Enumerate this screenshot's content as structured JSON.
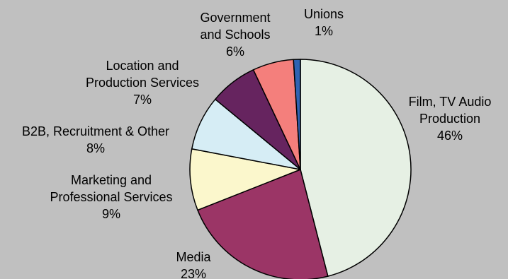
{
  "chart_data": {
    "type": "pie",
    "title": "",
    "slices": [
      {
        "label_lines": [
          "Film, TV Audio",
          "Production"
        ],
        "pct_text": "46%",
        "value": 46,
        "color": "#e6f0e4"
      },
      {
        "label_lines": [
          "Media"
        ],
        "pct_text": "23%",
        "value": 23,
        "color": "#9b3566"
      },
      {
        "label_lines": [
          "Marketing and",
          "Professional Services"
        ],
        "pct_text": "9%",
        "value": 9,
        "color": "#fbf7cc"
      },
      {
        "label_lines": [
          "B2B, Recruitment & Other"
        ],
        "pct_text": "8%",
        "value": 8,
        "color": "#d6edf5"
      },
      {
        "label_lines": [
          "Location and",
          "Production Services"
        ],
        "pct_text": "7%",
        "value": 7,
        "color": "#66245f"
      },
      {
        "label_lines": [
          "Government",
          "and Schools"
        ],
        "pct_text": "6%",
        "value": 6,
        "color": "#f47f7c"
      },
      {
        "label_lines": [
          "Unions"
        ],
        "pct_text": "1%",
        "value": 1,
        "color": "#2f63b3"
      }
    ]
  }
}
